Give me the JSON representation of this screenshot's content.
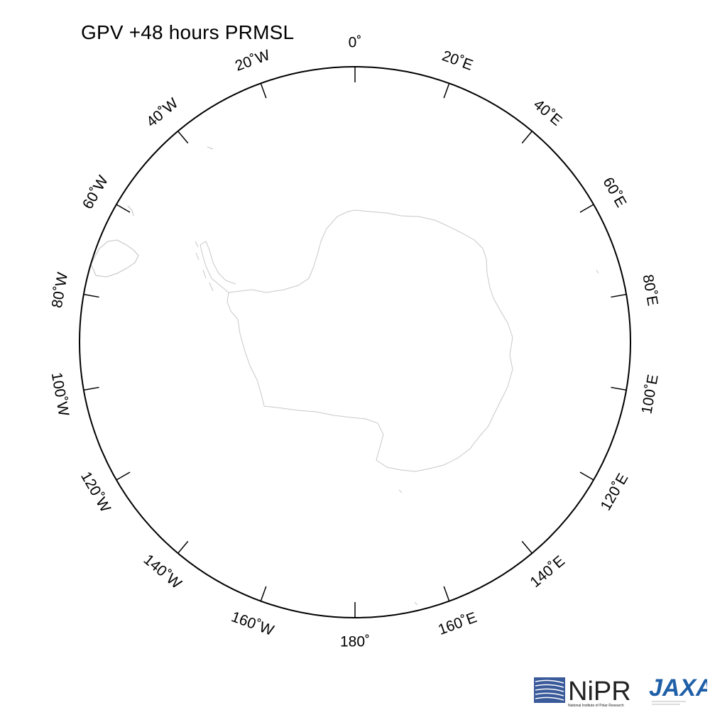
{
  "title": "GPV +48 hours PRMSL",
  "map": {
    "projection": "south polar stereographic",
    "coastline_color": "#c8c8c8",
    "frame_color": "#000000",
    "longitude_labels": [
      {
        "lon": 0,
        "text": "0˚"
      },
      {
        "lon": 20,
        "text": "20˚E"
      },
      {
        "lon": 40,
        "text": "40˚E"
      },
      {
        "lon": 60,
        "text": "60˚E"
      },
      {
        "lon": 80,
        "text": "80˚E"
      },
      {
        "lon": 100,
        "text": "100˚E"
      },
      {
        "lon": 120,
        "text": "120˚E"
      },
      {
        "lon": 140,
        "text": "140˚E"
      },
      {
        "lon": 160,
        "text": "160˚E"
      },
      {
        "lon": 180,
        "text": "180˚"
      },
      {
        "lon": -160,
        "text": "160˚W"
      },
      {
        "lon": -140,
        "text": "140˚W"
      },
      {
        "lon": -120,
        "text": "120˚W"
      },
      {
        "lon": -100,
        "text": "100˚W"
      },
      {
        "lon": -80,
        "text": "80˚W"
      },
      {
        "lon": -60,
        "text": "60˚W"
      },
      {
        "lon": -40,
        "text": "40˚W"
      },
      {
        "lon": -20,
        "text": "20˚W"
      }
    ]
  },
  "logos": {
    "nipr": {
      "name": "NiPR",
      "subtitle": "National Institute of Polar Research",
      "color": "#3a5a9a"
    },
    "jaxa": {
      "name": "JAXA",
      "color": "#1f5fa8"
    }
  }
}
